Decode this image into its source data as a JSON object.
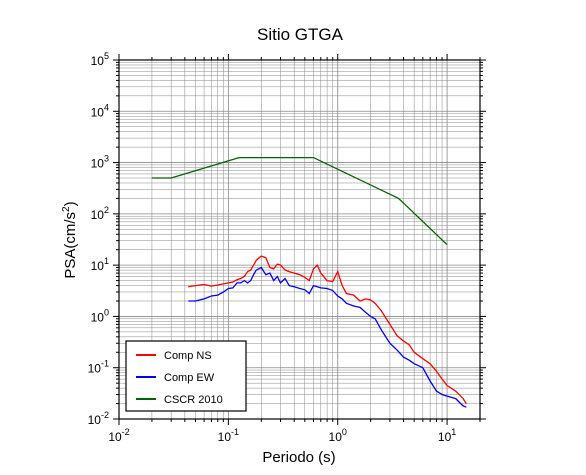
{
  "chart_data": {
    "type": "line",
    "title": "Sitio GTGA",
    "xlabel": "Periodo (s)",
    "ylabel": {
      "prefix": "PSA(cm/s",
      "sup": "2",
      "suffix": ")"
    },
    "x_scale": "log",
    "y_scale": "log",
    "xlim": [
      0.01,
      20
    ],
    "ylim": [
      0.01,
      100000
    ],
    "x_ticks": [
      {
        "base": "10",
        "exp": "-2",
        "value": 0.01
      },
      {
        "base": "10",
        "exp": "-1",
        "value": 0.1
      },
      {
        "base": "10",
        "exp": "0",
        "value": 1
      },
      {
        "base": "10",
        "exp": "1",
        "value": 10
      }
    ],
    "y_ticks": [
      {
        "base": "10",
        "exp": "-2",
        "value": 0.01
      },
      {
        "base": "10",
        "exp": "-1",
        "value": 0.1
      },
      {
        "base": "10",
        "exp": "0",
        "value": 1
      },
      {
        "base": "10",
        "exp": "1",
        "value": 10
      },
      {
        "base": "10",
        "exp": "2",
        "value": 100
      },
      {
        "base": "10",
        "exp": "3",
        "value": 1000
      },
      {
        "base": "10",
        "exp": "4",
        "value": 10000
      },
      {
        "base": "10",
        "exp": "5",
        "value": 100000
      }
    ],
    "grid": true,
    "legend_position": "bottom-left",
    "series": [
      {
        "name": "Comp NS",
        "color": "#ff0000",
        "x": [
          0.043,
          0.05,
          0.06,
          0.07,
          0.08,
          0.09,
          0.1,
          0.11,
          0.12,
          0.13,
          0.14,
          0.15,
          0.16,
          0.17,
          0.18,
          0.2,
          0.22,
          0.24,
          0.26,
          0.28,
          0.3,
          0.33,
          0.36,
          0.4,
          0.45,
          0.5,
          0.55,
          0.6,
          0.65,
          0.7,
          0.8,
          0.9,
          1.0,
          1.1,
          1.2,
          1.4,
          1.6,
          1.8,
          2.0,
          2.2,
          2.5,
          3.0,
          3.5,
          4.0,
          4.5,
          5.0,
          6.0,
          7.0,
          8.0,
          9.0,
          10.0,
          12.0,
          14.0,
          15.0
        ],
        "y": [
          3.8,
          4.0,
          4.2,
          3.9,
          4.1,
          4.3,
          4.5,
          4.7,
          5.2,
          5.5,
          6.0,
          7.5,
          8.0,
          10.0,
          12.5,
          15.0,
          14.0,
          9.0,
          8.5,
          10.5,
          10.0,
          8.0,
          7.5,
          7.0,
          6.5,
          5.8,
          5.0,
          8.5,
          10.0,
          7.0,
          5.0,
          4.8,
          7.5,
          4.0,
          2.8,
          2.6,
          2.0,
          2.2,
          2.1,
          1.8,
          1.3,
          0.7,
          0.42,
          0.33,
          0.28,
          0.2,
          0.15,
          0.12,
          0.085,
          0.06,
          0.045,
          0.035,
          0.025,
          0.02
        ]
      },
      {
        "name": "Comp EW",
        "color": "#0000ff",
        "x": [
          0.043,
          0.05,
          0.06,
          0.07,
          0.08,
          0.09,
          0.1,
          0.11,
          0.12,
          0.13,
          0.14,
          0.15,
          0.16,
          0.17,
          0.18,
          0.2,
          0.22,
          0.24,
          0.26,
          0.28,
          0.3,
          0.33,
          0.36,
          0.4,
          0.45,
          0.5,
          0.55,
          0.6,
          0.65,
          0.7,
          0.8,
          0.9,
          1.0,
          1.1,
          1.2,
          1.4,
          1.6,
          1.8,
          2.0,
          2.2,
          2.5,
          3.0,
          3.5,
          4.0,
          4.5,
          5.0,
          6.0,
          7.0,
          8.0,
          9.0,
          10.0,
          12.0,
          14.0,
          15.0
        ],
        "y": [
          2.0,
          2.0,
          2.2,
          2.5,
          2.6,
          3.0,
          3.5,
          3.6,
          4.5,
          4.5,
          5.0,
          4.5,
          5.0,
          6.5,
          8.0,
          9.0,
          6.5,
          7.0,
          5.0,
          6.0,
          4.5,
          5.5,
          4.0,
          3.8,
          3.5,
          3.3,
          2.8,
          4.0,
          3.8,
          3.6,
          3.5,
          3.2,
          2.5,
          2.2,
          1.8,
          1.6,
          1.5,
          1.2,
          1.0,
          0.9,
          0.55,
          0.3,
          0.22,
          0.16,
          0.14,
          0.12,
          0.1,
          0.055,
          0.035,
          0.03,
          0.028,
          0.025,
          0.018,
          0.017
        ]
      },
      {
        "name": "CSCR 2010",
        "color": "#006400",
        "x": [
          0.02,
          0.03,
          0.125,
          0.6,
          3.6,
          10.0
        ],
        "y": [
          500,
          500,
          1250,
          1250,
          200,
          25
        ]
      }
    ]
  }
}
